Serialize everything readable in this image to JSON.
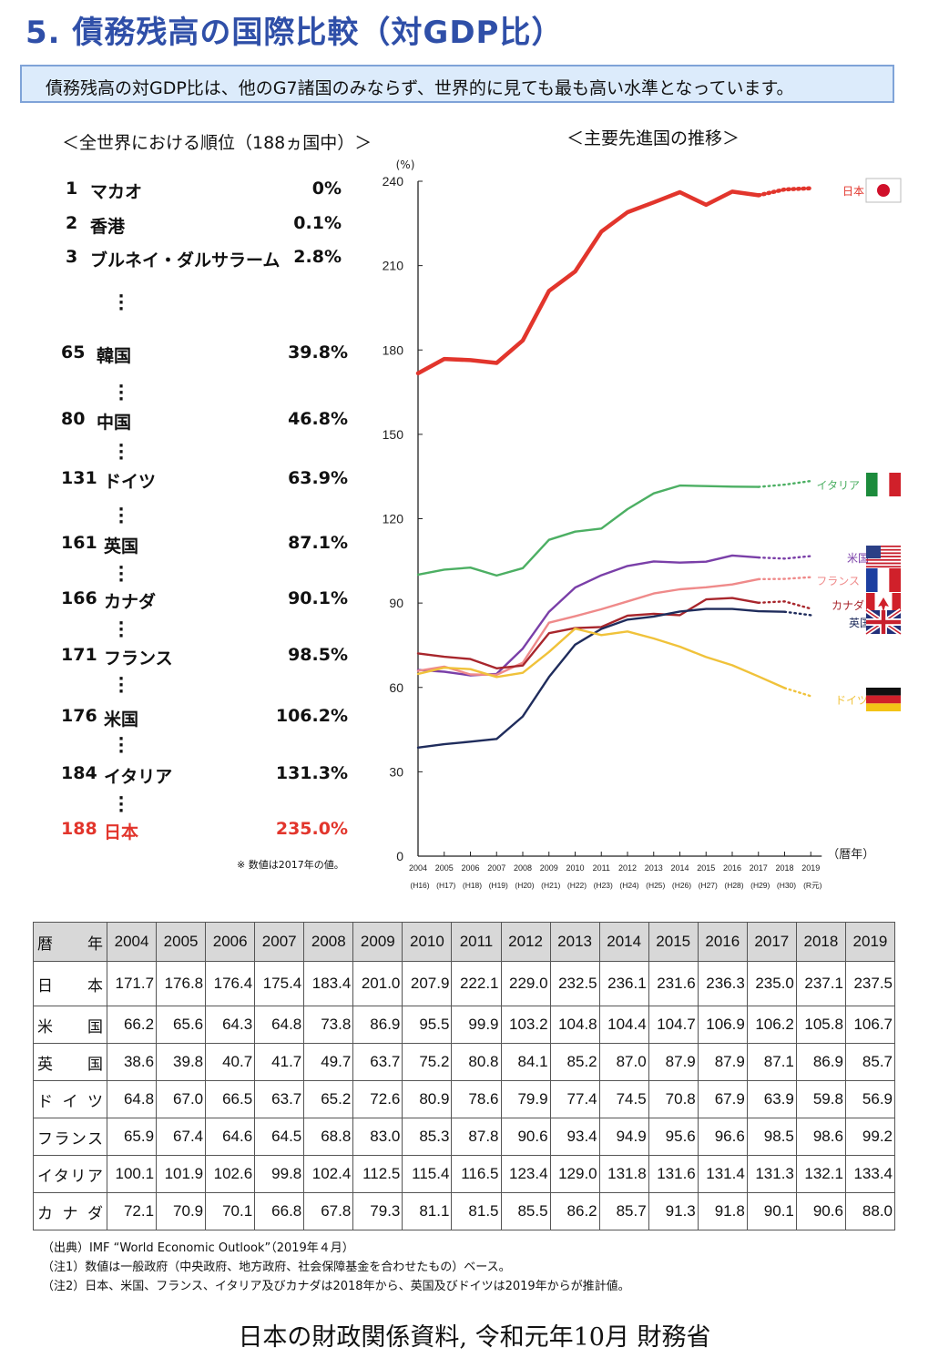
{
  "title": "5. 債務残高の国際比較（対GDP比）",
  "summary": "債務残高の対GDP比は、他のG7諸国のみならず、世界的に見ても最も高い水準となっています。",
  "ranking": {
    "heading": "＜全世界における順位（188ヵ国中）＞",
    "rows": [
      {
        "rank": "1",
        "name": "マカオ",
        "value": "0%"
      },
      {
        "rank": "2",
        "name": "香港",
        "value": "0.1%"
      },
      {
        "rank": "3",
        "name": "ブルネイ・ダルサラーム",
        "value": "2.8%"
      },
      {
        "rank": "65",
        "name": "韓国",
        "value": "39.8%"
      },
      {
        "rank": "80",
        "name": "中国",
        "value": "46.8%"
      },
      {
        "rank": "131",
        "name": "ドイツ",
        "value": "63.9%"
      },
      {
        "rank": "161",
        "name": "英国",
        "value": "87.1%"
      },
      {
        "rank": "166",
        "name": "カナダ",
        "value": "90.1%"
      },
      {
        "rank": "171",
        "name": "フランス",
        "value": "98.5%"
      },
      {
        "rank": "176",
        "name": "米国",
        "value": "106.2%"
      },
      {
        "rank": "184",
        "name": "イタリア",
        "value": "131.3%"
      },
      {
        "rank": "188",
        "name": "日本",
        "value": "235.0%"
      }
    ],
    "note": "※ 数値は2017年の値。"
  },
  "trend_heading": "＜主要先進国の推移＞",
  "chart_data": {
    "type": "line",
    "ylabel": "(%)",
    "xlabel": "（暦年）",
    "ylim": [
      0,
      240
    ],
    "yticks": [
      "0",
      "30",
      "60",
      "90",
      "120",
      "150",
      "180",
      "210",
      "240"
    ],
    "x": [
      "2004",
      "2005",
      "2006",
      "2007",
      "2008",
      "2009",
      "2010",
      "2011",
      "2012",
      "2013",
      "2014",
      "2015",
      "2016",
      "2017",
      "2018",
      "2019"
    ],
    "x_sub": [
      "(H16)",
      "(H17)",
      "(H18)",
      "(H19)",
      "(H20)",
      "(H21)",
      "(H22)",
      "(H23)",
      "(H24)",
      "(H25)",
      "(H26)",
      "(H27)",
      "(H28)",
      "(H29)",
      "(H30)",
      "(R元)"
    ],
    "series": [
      {
        "name": "日本",
        "color": "#e2352c",
        "estimate_from": "2018",
        "values": [
          171.7,
          176.8,
          176.4,
          175.4,
          183.4,
          201.0,
          207.9,
          222.1,
          229.0,
          232.5,
          236.1,
          231.6,
          236.3,
          235.0,
          237.1,
          237.5
        ]
      },
      {
        "name": "イタリア",
        "color": "#4caf63",
        "estimate_from": "2018",
        "values": [
          100.1,
          101.9,
          102.6,
          99.8,
          102.4,
          112.5,
          115.4,
          116.5,
          123.4,
          129.0,
          131.8,
          131.6,
          131.4,
          131.3,
          132.1,
          133.4
        ]
      },
      {
        "name": "米国",
        "color": "#7a3fa8",
        "estimate_from": "2018",
        "values": [
          66.2,
          65.6,
          64.3,
          64.8,
          73.8,
          86.9,
          95.5,
          99.9,
          103.2,
          104.8,
          104.4,
          104.7,
          106.9,
          106.2,
          105.8,
          106.7
        ]
      },
      {
        "name": "フランス",
        "color": "#ef8a8a",
        "estimate_from": "2018",
        "values": [
          65.9,
          67.4,
          64.6,
          64.5,
          68.8,
          83.0,
          85.3,
          87.8,
          90.6,
          93.4,
          94.9,
          95.6,
          96.6,
          98.5,
          98.6,
          99.2
        ]
      },
      {
        "name": "カナダ",
        "color": "#a8262c",
        "estimate_from": "2018",
        "values": [
          72.1,
          70.9,
          70.1,
          66.8,
          67.8,
          79.3,
          81.1,
          81.5,
          85.5,
          86.2,
          85.7,
          91.3,
          91.8,
          90.1,
          90.6,
          88.0
        ]
      },
      {
        "name": "英国",
        "color": "#1f2c5c",
        "estimate_from": "2019",
        "values": [
          38.6,
          39.8,
          40.7,
          41.7,
          49.7,
          63.7,
          75.2,
          80.8,
          84.1,
          85.2,
          87.0,
          87.9,
          87.9,
          87.1,
          86.9,
          85.7
        ]
      },
      {
        "name": "ドイツ",
        "color": "#f0c23a",
        "estimate_from": "2019",
        "values": [
          64.8,
          67.0,
          66.5,
          63.7,
          65.2,
          72.6,
          80.9,
          78.6,
          79.9,
          77.4,
          74.5,
          70.8,
          67.9,
          63.9,
          59.8,
          56.9
        ]
      }
    ],
    "grid": false,
    "legend": "right, labels beside line ends with national flags"
  },
  "table": {
    "corner": "暦 年",
    "years": [
      "2004",
      "2005",
      "2006",
      "2007",
      "2008",
      "2009",
      "2010",
      "2011",
      "2012",
      "2013",
      "2014",
      "2015",
      "2016",
      "2017",
      "2018",
      "2019"
    ],
    "rows": [
      {
        "label": "日 本",
        "values": [
          "171.7",
          "176.8",
          "176.4",
          "175.4",
          "183.4",
          "201.0",
          "207.9",
          "222.1",
          "229.0",
          "232.5",
          "236.1",
          "231.6",
          "236.3",
          "235.0",
          "237.1",
          "237.5"
        ]
      },
      {
        "label": "米 国",
        "values": [
          "66.2",
          "65.6",
          "64.3",
          "64.8",
          "73.8",
          "86.9",
          "95.5",
          "99.9",
          "103.2",
          "104.8",
          "104.4",
          "104.7",
          "106.9",
          "106.2",
          "105.8",
          "106.7"
        ]
      },
      {
        "label": "英 国",
        "values": [
          "38.6",
          "39.8",
          "40.7",
          "41.7",
          "49.7",
          "63.7",
          "75.2",
          "80.8",
          "84.1",
          "85.2",
          "87.0",
          "87.9",
          "87.9",
          "87.1",
          "86.9",
          "85.7"
        ]
      },
      {
        "label": "ド イ ツ",
        "values": [
          "64.8",
          "67.0",
          "66.5",
          "63.7",
          "65.2",
          "72.6",
          "80.9",
          "78.6",
          "79.9",
          "77.4",
          "74.5",
          "70.8",
          "67.9",
          "63.9",
          "59.8",
          "56.9"
        ]
      },
      {
        "label": "フランス",
        "values": [
          "65.9",
          "67.4",
          "64.6",
          "64.5",
          "68.8",
          "83.0",
          "85.3",
          "87.8",
          "90.6",
          "93.4",
          "94.9",
          "95.6",
          "96.6",
          "98.5",
          "98.6",
          "99.2"
        ]
      },
      {
        "label": "イタリア",
        "values": [
          "100.1",
          "101.9",
          "102.6",
          "99.8",
          "102.4",
          "112.5",
          "115.4",
          "116.5",
          "123.4",
          "129.0",
          "131.8",
          "131.6",
          "131.4",
          "131.3",
          "132.1",
          "133.4"
        ]
      },
      {
        "label": "カ ナ ダ",
        "values": [
          "72.1",
          "70.9",
          "70.1",
          "66.8",
          "67.8",
          "79.3",
          "81.1",
          "81.5",
          "85.5",
          "86.2",
          "85.7",
          "91.3",
          "91.8",
          "90.1",
          "90.6",
          "88.0"
        ]
      }
    ]
  },
  "notes": [
    "（出典）IMF “World Economic Outlook”（2019年４月）",
    "（注1）数値は一般政府（中央政府、地方政府、社会保障基金を合わせたもの）ベース。",
    "（注2）日本、米国、フランス、イタリア及びカナダは2018年から、英国及びドイツは2019年からが推計値。"
  ],
  "source_caption": "日本の財政関係資料, 令和元年10月 財務省"
}
